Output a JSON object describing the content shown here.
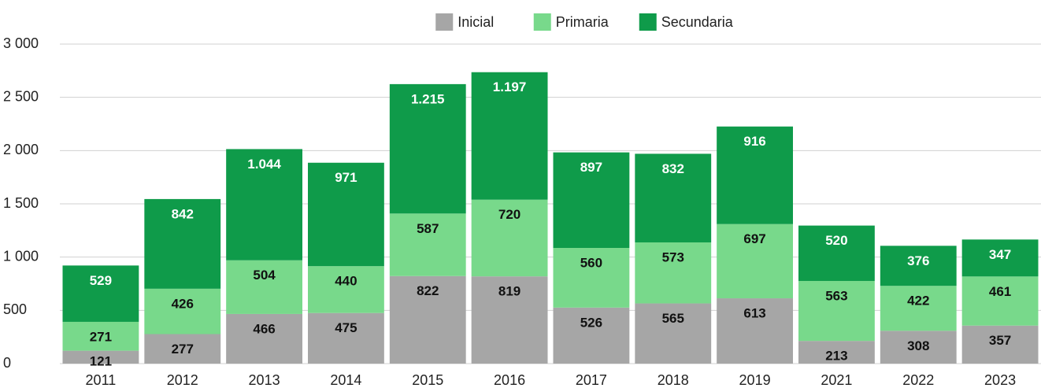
{
  "chart_data": {
    "type": "stacked_bar",
    "categories": [
      "2011",
      "2012",
      "2013",
      "2014",
      "2015",
      "2016",
      "2017",
      "2018",
      "2019",
      "2021",
      "2022",
      "2023"
    ],
    "series": [
      {
        "name": "Inicial",
        "color": "#a6a6a6",
        "values": [
          121,
          277,
          466,
          475,
          822,
          819,
          526,
          565,
          613,
          213,
          308,
          357
        ]
      },
      {
        "name": "Primaria",
        "color": "#78d98b",
        "values": [
          271,
          426,
          504,
          440,
          587,
          720,
          560,
          573,
          697,
          563,
          422,
          461
        ]
      },
      {
        "name": "Secundaria",
        "color": "#0f9b4a",
        "values": [
          529,
          842,
          1044,
          971,
          1215,
          1197,
          897,
          832,
          916,
          520,
          376,
          347
        ],
        "value_labels": [
          "529",
          "842",
          "1.044",
          "971",
          "1.215",
          "1.197",
          "897",
          "832",
          "916",
          "520",
          "376",
          "347"
        ]
      }
    ],
    "ylim": [
      0,
      3000
    ],
    "yticks": [
      0,
      500,
      {
        "value": 1000,
        "label": "1 000"
      },
      {
        "value": 1500,
        "label": "1 500"
      },
      {
        "value": 2000,
        "label": "2 000"
      },
      {
        "value": 2500,
        "label": "2 500"
      },
      {
        "value": 3000,
        "label": "3 000"
      }
    ],
    "grid": true,
    "legend": "top"
  }
}
